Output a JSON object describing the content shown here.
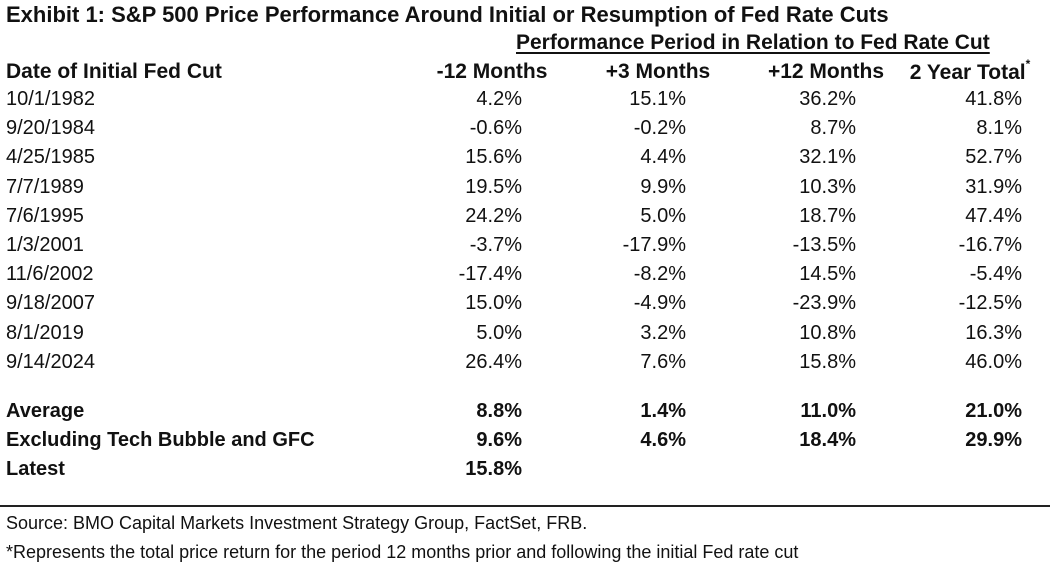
{
  "title": "Exhibit 1: S&P 500 Price Performance Around Initial or Resumption of Fed Rate Cuts",
  "chart_data": {
    "type": "table",
    "title": "Exhibit 1: S&P 500 Price Performance Around Initial or Resumption of Fed Rate Cuts",
    "group_header": "Performance Period in Relation to Fed Rate Cut",
    "columns": [
      "Date of Initial Fed Cut",
      "-12 Months",
      "+3 Months",
      "+12 Months",
      "2 Year Total*"
    ],
    "rows": [
      [
        "10/1/1982",
        "4.2%",
        "15.1%",
        "36.2%",
        "41.8%"
      ],
      [
        "9/20/1984",
        "-0.6%",
        "-0.2%",
        "8.7%",
        "8.1%"
      ],
      [
        "4/25/1985",
        "15.6%",
        "4.4%",
        "32.1%",
        "52.7%"
      ],
      [
        "7/7/1989",
        "19.5%",
        "9.9%",
        "10.3%",
        "31.9%"
      ],
      [
        "7/6/1995",
        "24.2%",
        "5.0%",
        "18.7%",
        "47.4%"
      ],
      [
        "1/3/2001",
        "-3.7%",
        "-17.9%",
        "-13.5%",
        "-16.7%"
      ],
      [
        "11/6/2002",
        "-17.4%",
        "-8.2%",
        "14.5%",
        "-5.4%"
      ],
      [
        "9/18/2007",
        "15.0%",
        "-4.9%",
        "-23.9%",
        "-12.5%"
      ],
      [
        "8/1/2019",
        "5.0%",
        "3.2%",
        "10.8%",
        "16.3%"
      ],
      [
        "9/14/2024",
        "26.4%",
        "7.6%",
        "15.8%",
        "46.0%"
      ]
    ],
    "summary_rows": [
      [
        "Average",
        "8.8%",
        "1.4%",
        "11.0%",
        "21.0%"
      ],
      [
        "Excluding Tech Bubble and GFC",
        "9.6%",
        "4.6%",
        "18.4%",
        "29.9%"
      ],
      [
        "Latest",
        "15.8%",
        "",
        "",
        ""
      ]
    ]
  },
  "source": "Source: BMO Capital Markets Investment Strategy Group, FactSet, FRB.",
  "footnote": "*Represents the total price return for the period 12 months prior and following the initial Fed rate cut"
}
